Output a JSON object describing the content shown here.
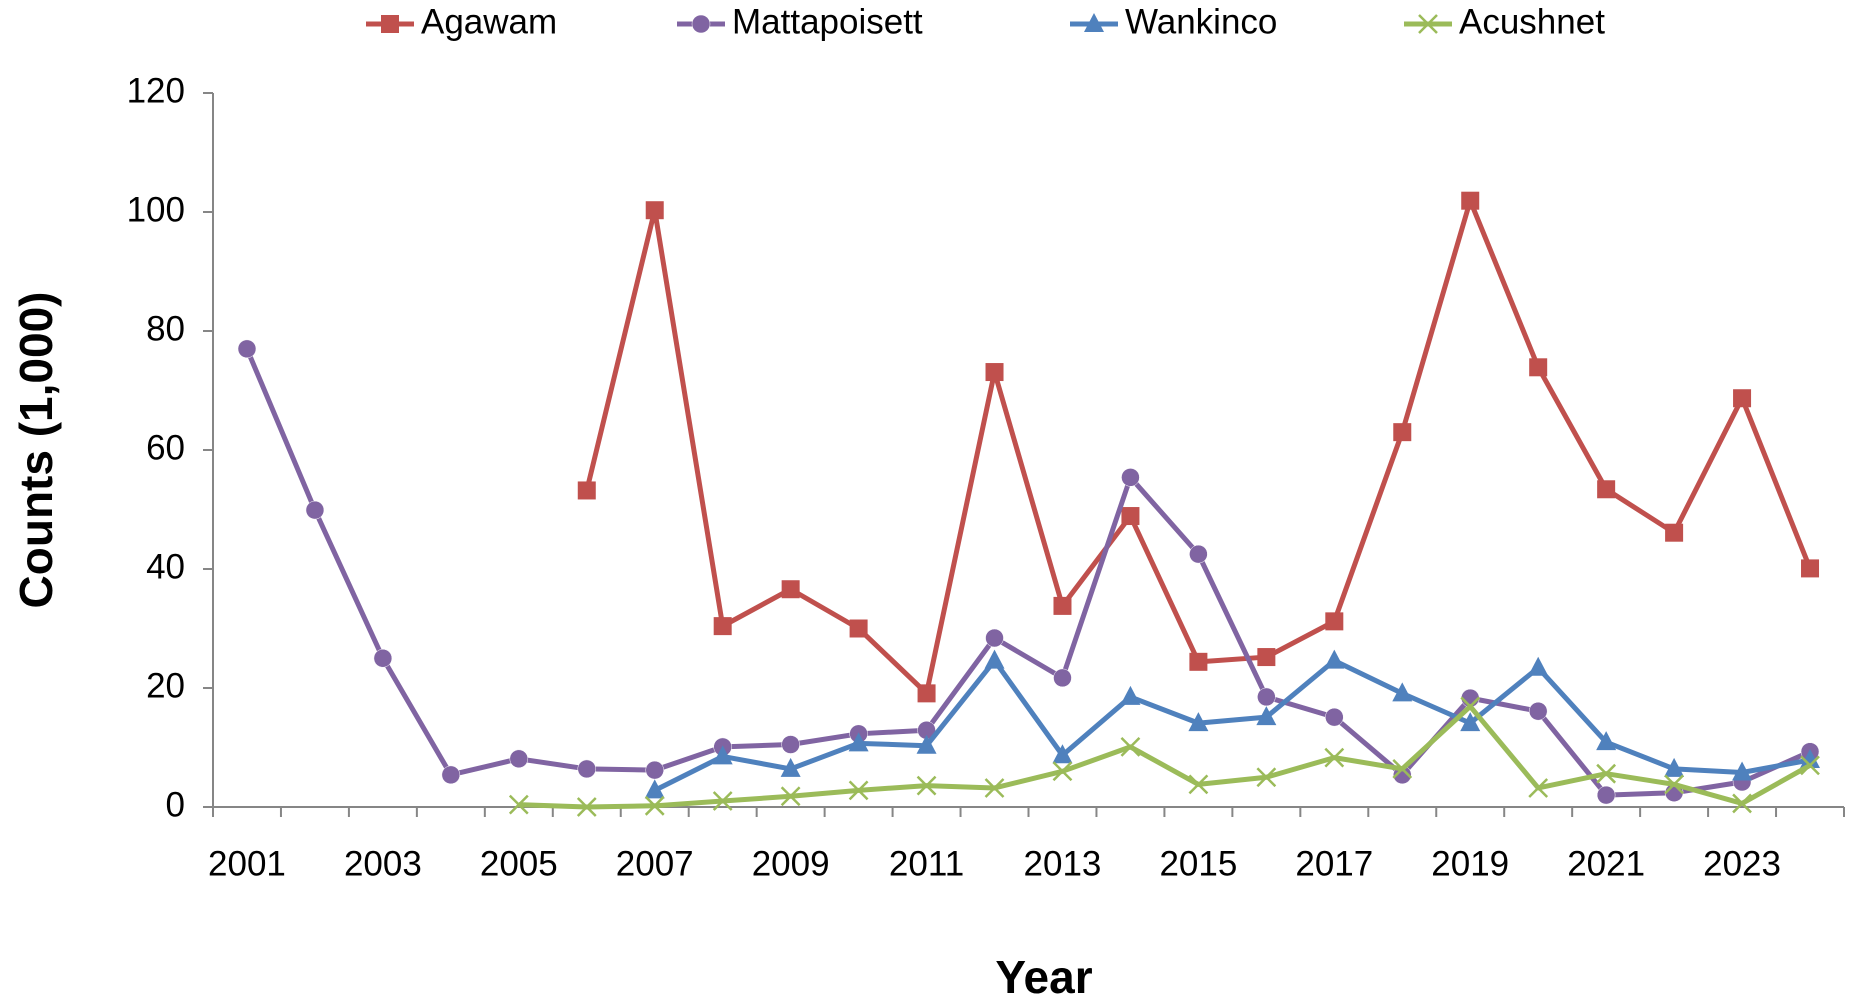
{
  "chart_data": {
    "type": "line",
    "xlabel": "Year",
    "ylabel": "Counts (1,000)",
    "categories": [
      "2001",
      null,
      "2003",
      null,
      "2005",
      null,
      "2007",
      null,
      "2009",
      null,
      "2011",
      null,
      "2013",
      null,
      "2015",
      null,
      "2017",
      null,
      "2019",
      null,
      "2021",
      null,
      "2023",
      null
    ],
    "ylim": [
      0,
      120
    ],
    "yticks": [
      0,
      20,
      40,
      60,
      80,
      100,
      120
    ],
    "grid": false,
    "legend": "top",
    "series": [
      {
        "name": "Agawam",
        "color": "#c0504d",
        "marker": "square",
        "values": [
          null,
          null,
          null,
          null,
          null,
          53.2,
          100.3,
          30.4,
          36.6,
          30,
          19.1,
          73.1,
          33.8,
          48.9,
          24.4,
          25.2,
          31.2,
          63,
          101.9,
          73.9,
          53.4,
          46.1,
          68.7,
          40.1
        ]
      },
      {
        "name": "Mattapoisett",
        "color": "#8064a2",
        "marker": "circle",
        "values": [
          77,
          49.9,
          25,
          5.4,
          8.1,
          6.4,
          6.2,
          10.1,
          10.5,
          12.3,
          12.9,
          28.4,
          21.7,
          55.4,
          42.5,
          18.5,
          15.1,
          5.4,
          18.3,
          16.1,
          2,
          2.4,
          4.2,
          9.3
        ]
      },
      {
        "name": "Wankinco",
        "color": "#4f81bd",
        "marker": "triangle",
        "values": [
          null,
          null,
          null,
          null,
          null,
          null,
          2.8,
          8.5,
          6.4,
          10.7,
          10.3,
          24.6,
          8.7,
          18.5,
          14.1,
          15.1,
          24.6,
          19.1,
          14.1,
          23.4,
          10.9,
          6.4,
          5.8,
          7.9
        ]
      },
      {
        "name": "Acushnet",
        "color": "#9bbb59",
        "marker": "x",
        "values": [
          null,
          null,
          null,
          null,
          0.4,
          0,
          0.2,
          1,
          1.8,
          2.8,
          3.6,
          3.2,
          6,
          10.1,
          3.8,
          5,
          8.3,
          6.4,
          16.9,
          3.2,
          5.6,
          3.8,
          0.6,
          7
        ]
      }
    ]
  }
}
